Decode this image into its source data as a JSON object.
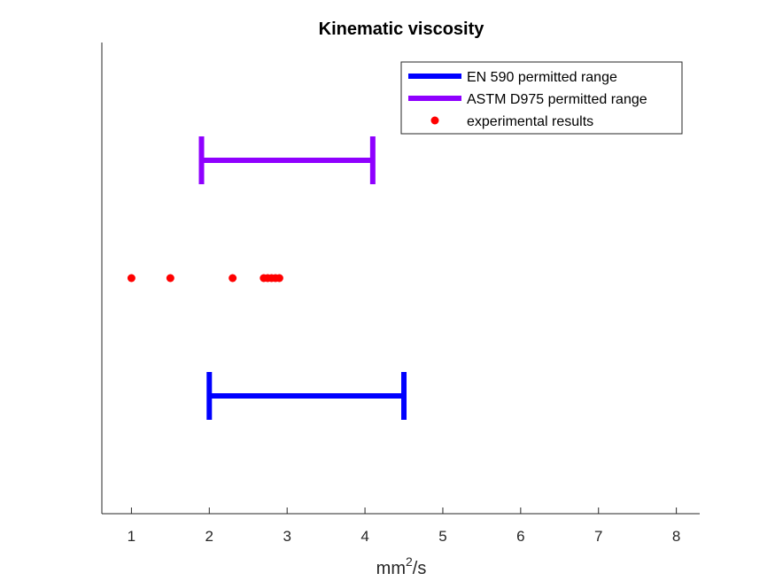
{
  "chart_data": {
    "type": "scatter",
    "title": "Kinematic viscosity",
    "xlabel_base": "mm",
    "xlabel_sup": "2",
    "xlabel_tail": "/s",
    "xlim": [
      0.62,
      8.3
    ],
    "ylim": [
      0,
      6
    ],
    "xticks": [
      1,
      2,
      3,
      4,
      5,
      6,
      7,
      8
    ],
    "y_tick_labels_shown": false,
    "series": [
      {
        "name": "EN 590 permitted range",
        "kind": "range",
        "color": "#0000FF",
        "y": 1.5,
        "x_min": 2.0,
        "x_max": 4.5
      },
      {
        "name": "ASTM D975 permitted range",
        "kind": "range",
        "color": "#8F00FF",
        "y": 4.5,
        "x_min": 1.9,
        "x_max": 4.1
      },
      {
        "name": "experimental results",
        "kind": "points",
        "color": "#FF0000",
        "y": 3.0,
        "x": [
          1.0,
          1.5,
          2.3,
          2.7,
          2.75,
          2.8,
          2.85,
          2.9
        ]
      }
    ],
    "legend_position": "top-right"
  }
}
